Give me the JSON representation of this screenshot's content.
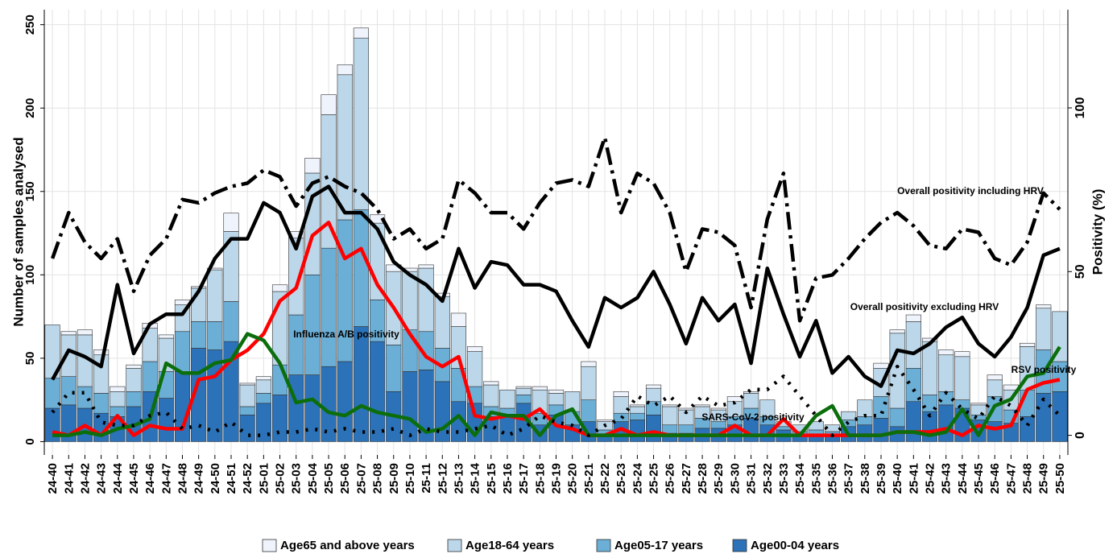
{
  "chart_data": {
    "type": "bar",
    "stacked": true,
    "y_label": "Number of samples analysed",
    "y2_label": "Positivity (%)",
    "categories": [
      "24-40",
      "24-41",
      "24-42",
      "24-43",
      "24-44",
      "24-45",
      "24-46",
      "24-47",
      "24-48",
      "24-49",
      "24-50",
      "24-51",
      "24-52",
      "25-01",
      "25-02",
      "25-03",
      "25-04",
      "25-05",
      "25-06",
      "25-07",
      "25-08",
      "25-09",
      "25-10",
      "25-11",
      "25-12",
      "25-13",
      "25-14",
      "25-15",
      "25-16",
      "25-17",
      "25-18",
      "25-19",
      "25-20",
      "25-21",
      "25-22",
      "25-23",
      "25-24",
      "25-25",
      "25-26",
      "25-27",
      "25-28",
      "25-29",
      "25-30",
      "25-31",
      "25-32",
      "25-33",
      "25-34",
      "25-35",
      "25-36",
      "25-37",
      "25-38",
      "25-39",
      "25-40",
      "25-41",
      "25-42",
      "25-43",
      "25-44",
      "25-45",
      "25-46",
      "25-47",
      "25-48",
      "25-49",
      "25-50"
    ],
    "ylim": [
      -8,
      259
    ],
    "yticks": [
      0,
      50,
      100,
      150,
      200,
      250
    ],
    "y2lim": [
      -6,
      130
    ],
    "y2ticks": [
      0,
      50,
      100
    ],
    "grid": true,
    "legend": "bottom",
    "series": [
      {
        "name": "Age65 and above years",
        "color": "#eef3fc",
        "values": [
          0,
          2,
          3,
          3,
          3,
          2,
          3,
          2,
          3,
          1,
          1,
          11,
          1,
          2,
          4,
          4,
          9,
          12,
          6,
          6,
          5,
          4,
          2,
          2,
          2,
          8,
          3,
          2,
          0,
          1,
          2,
          2,
          0,
          3,
          1,
          3,
          1,
          2,
          1,
          1,
          1,
          1,
          3,
          1,
          0,
          0,
          0,
          0,
          0,
          0,
          0,
          3,
          2,
          4,
          2,
          3,
          3,
          1,
          3,
          3,
          2,
          2,
          0
        ]
      },
      {
        "name": "Age18-64 years",
        "color": "#bcd7e9",
        "values": [
          32,
          25,
          31,
          23,
          9,
          14,
          20,
          20,
          16,
          20,
          31,
          42,
          13,
          8,
          44,
          46,
          61,
          80,
          87,
          103,
          46,
          44,
          35,
          38,
          31,
          25,
          21,
          13,
          11,
          4,
          14,
          7,
          12,
          20,
          5,
          10,
          4,
          8,
          11,
          9,
          7,
          7,
          9,
          9,
          10,
          3,
          4,
          5,
          4,
          5,
          10,
          17,
          45,
          28,
          32,
          22,
          26,
          6,
          10,
          12,
          26,
          25,
          30
        ]
      },
      {
        "name": "Age05-17 years",
        "color": "#6baed6",
        "values": [
          18,
          17,
          13,
          12,
          6,
          9,
          18,
          16,
          24,
          16,
          17,
          24,
          5,
          6,
          18,
          36,
          60,
          71,
          85,
          70,
          25,
          28,
          25,
          23,
          20,
          20,
          10,
          6,
          5,
          5,
          7,
          6,
          8,
          13,
          3,
          5,
          4,
          8,
          5,
          5,
          6,
          4,
          5,
          6,
          5,
          2,
          2,
          3,
          2,
          4,
          5,
          13,
          11,
          20,
          10,
          8,
          5,
          3,
          15,
          8,
          16,
          26,
          18
        ]
      },
      {
        "name": "Age00-04 years",
        "color": "#2b72b8",
        "values": [
          20,
          22,
          20,
          17,
          15,
          21,
          30,
          26,
          42,
          56,
          55,
          60,
          16,
          23,
          28,
          40,
          40,
          45,
          48,
          69,
          60,
          30,
          42,
          43,
          36,
          24,
          23,
          15,
          15,
          23,
          10,
          16,
          10,
          12,
          4,
          12,
          13,
          16,
          5,
          5,
          8,
          8,
          10,
          14,
          10,
          7,
          4,
          4,
          4,
          9,
          10,
          14,
          9,
          24,
          18,
          22,
          20,
          13,
          12,
          11,
          15,
          29,
          30
        ]
      },
      {
        "name": "Overall positivity including HRV",
        "type": "line",
        "axis": "y2",
        "color": "#000000",
        "linestyle": "dashdot",
        "values": [
          54,
          68,
          59,
          54,
          60,
          44,
          55,
          60,
          72,
          71,
          74,
          76,
          77,
          81,
          79,
          70,
          77,
          79,
          76,
          74,
          69,
          60,
          63,
          57,
          60,
          78,
          74,
          68,
          68,
          63,
          71,
          77,
          78,
          76,
          91,
          68,
          80,
          77,
          68,
          50,
          63,
          62,
          58,
          39,
          66,
          80,
          35,
          48,
          49,
          54,
          60,
          65,
          68,
          64,
          58,
          57,
          63,
          62,
          54,
          52,
          59,
          74,
          69
        ]
      },
      {
        "name": "Overall positivity excluding HRV",
        "type": "line",
        "axis": "y2",
        "color": "#000000",
        "linestyle": "solid",
        "values": [
          17,
          26,
          24,
          21,
          46,
          25,
          34,
          37,
          37,
          44,
          54,
          60,
          60,
          71,
          68,
          57,
          73,
          76,
          68,
          68,
          63,
          53,
          49,
          46,
          41,
          57,
          45,
          53,
          52,
          46,
          46,
          44,
          35,
          27,
          42,
          39,
          42,
          50,
          40,
          28,
          42,
          35,
          40,
          22,
          51,
          37,
          24,
          35,
          19,
          24,
          18,
          15,
          26,
          25,
          28,
          33,
          36,
          28,
          24,
          30,
          39,
          55,
          57
        ]
      },
      {
        "name": "Influenza A/B positivity",
        "type": "line",
        "axis": "y2",
        "color": "#ff0000",
        "linestyle": "solid",
        "values": [
          1,
          0,
          3,
          0,
          6,
          0,
          3,
          2,
          2,
          17,
          18,
          23,
          26,
          31,
          41,
          45,
          61,
          65,
          54,
          57,
          46,
          39,
          31,
          24,
          21,
          24,
          6,
          5,
          6,
          5,
          8,
          3,
          2,
          0,
          0,
          2,
          0,
          1,
          0,
          0,
          0,
          0,
          3,
          0,
          0,
          5,
          0,
          0,
          0,
          0,
          0,
          0,
          1,
          1,
          1,
          2,
          0,
          3,
          2,
          3,
          14,
          16,
          17
        ]
      },
      {
        "name": "RSV positivity",
        "type": "line",
        "axis": "y2",
        "color": "#0b6e0b",
        "linestyle": "solid",
        "values": [
          0,
          0,
          1,
          0,
          2,
          3,
          5,
          22,
          19,
          19,
          22,
          23,
          31,
          29,
          22,
          10,
          11,
          7,
          6,
          9,
          7,
          6,
          5,
          1,
          2,
          6,
          0,
          7,
          6,
          6,
          0,
          6,
          8,
          0,
          0,
          0,
          0,
          0,
          0,
          0,
          0,
          0,
          0,
          0,
          0,
          0,
          0,
          6,
          9,
          0,
          0,
          0,
          1,
          1,
          0,
          1,
          8,
          0,
          9,
          11,
          18,
          19,
          27
        ]
      },
      {
        "name": "SARS-CoV-2 positivity",
        "type": "line",
        "axis": "y2",
        "color": "#000000",
        "linestyle": "dotted",
        "values": [
          7,
          13,
          13,
          4,
          3,
          3,
          6,
          7,
          2,
          3,
          1,
          4,
          0,
          0,
          1,
          1,
          2,
          1,
          2,
          1,
          1,
          2,
          0,
          2,
          1,
          1,
          2,
          3,
          0,
          2,
          6,
          4,
          3,
          0,
          3,
          5,
          12,
          9,
          12,
          7,
          12,
          9,
          10,
          14,
          14,
          18,
          12,
          6,
          0,
          4,
          6,
          6,
          21,
          14,
          6,
          13,
          8,
          5,
          12,
          9,
          3,
          11,
          6
        ]
      }
    ]
  }
}
